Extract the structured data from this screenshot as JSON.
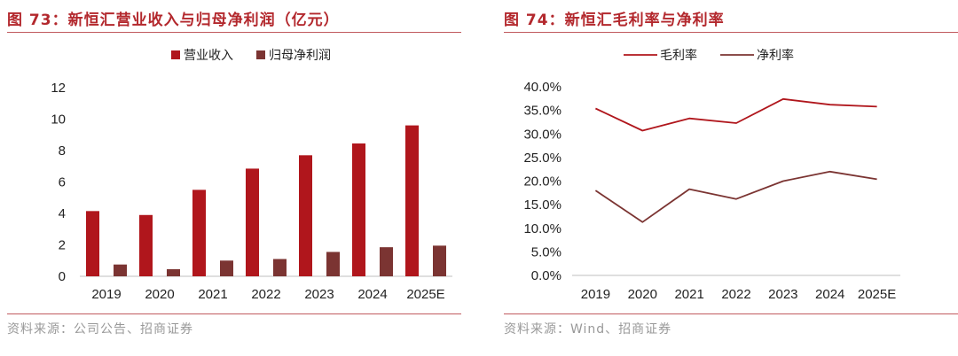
{
  "left": {
    "title": "图 73：新恒汇营业收入与归母净利润（亿元）",
    "source": "资料来源：公司公告、招商证券"
  },
  "right": {
    "title": "图 74：新恒汇毛利率与净利率",
    "source": "资料来源：Wind、招商证券"
  },
  "colors": {
    "revenue": "#b0161c",
    "net_profit": "#7b3432",
    "gross_margin": "#b0161c",
    "net_margin": "#7b3432",
    "title": "#b3282d"
  },
  "chart_data": [
    {
      "type": "bar",
      "categories": [
        "2019",
        "2020",
        "2021",
        "2022",
        "2023",
        "2024",
        "2025E"
      ],
      "series": [
        {
          "name": "营业收入",
          "values": [
            4.15,
            3.9,
            5.5,
            6.85,
            7.7,
            8.45,
            9.6
          ]
        },
        {
          "name": "归母净利润",
          "values": [
            0.75,
            0.45,
            1.0,
            1.1,
            1.55,
            1.85,
            1.95
          ]
        }
      ],
      "yticks": [
        "0",
        "2",
        "4",
        "6",
        "8",
        "10",
        "12"
      ],
      "ylim": [
        0,
        12
      ],
      "legend_position": "top-right",
      "grid": false
    },
    {
      "type": "line",
      "categories": [
        "2019",
        "2020",
        "2021",
        "2022",
        "2023",
        "2024",
        "2025E"
      ],
      "series": [
        {
          "name": "毛利率",
          "values": [
            35.4,
            30.7,
            33.3,
            32.3,
            37.4,
            36.2,
            35.8
          ]
        },
        {
          "name": "净利率",
          "values": [
            18.0,
            11.3,
            18.3,
            16.2,
            20.0,
            22.0,
            20.4
          ]
        }
      ],
      "yticks": [
        "0.0%",
        "5.0%",
        "10.0%",
        "15.0%",
        "20.0%",
        "25.0%",
        "30.0%",
        "35.0%",
        "40.0%"
      ],
      "ylim": [
        0,
        40
      ],
      "legend_position": "top",
      "grid": false
    }
  ]
}
